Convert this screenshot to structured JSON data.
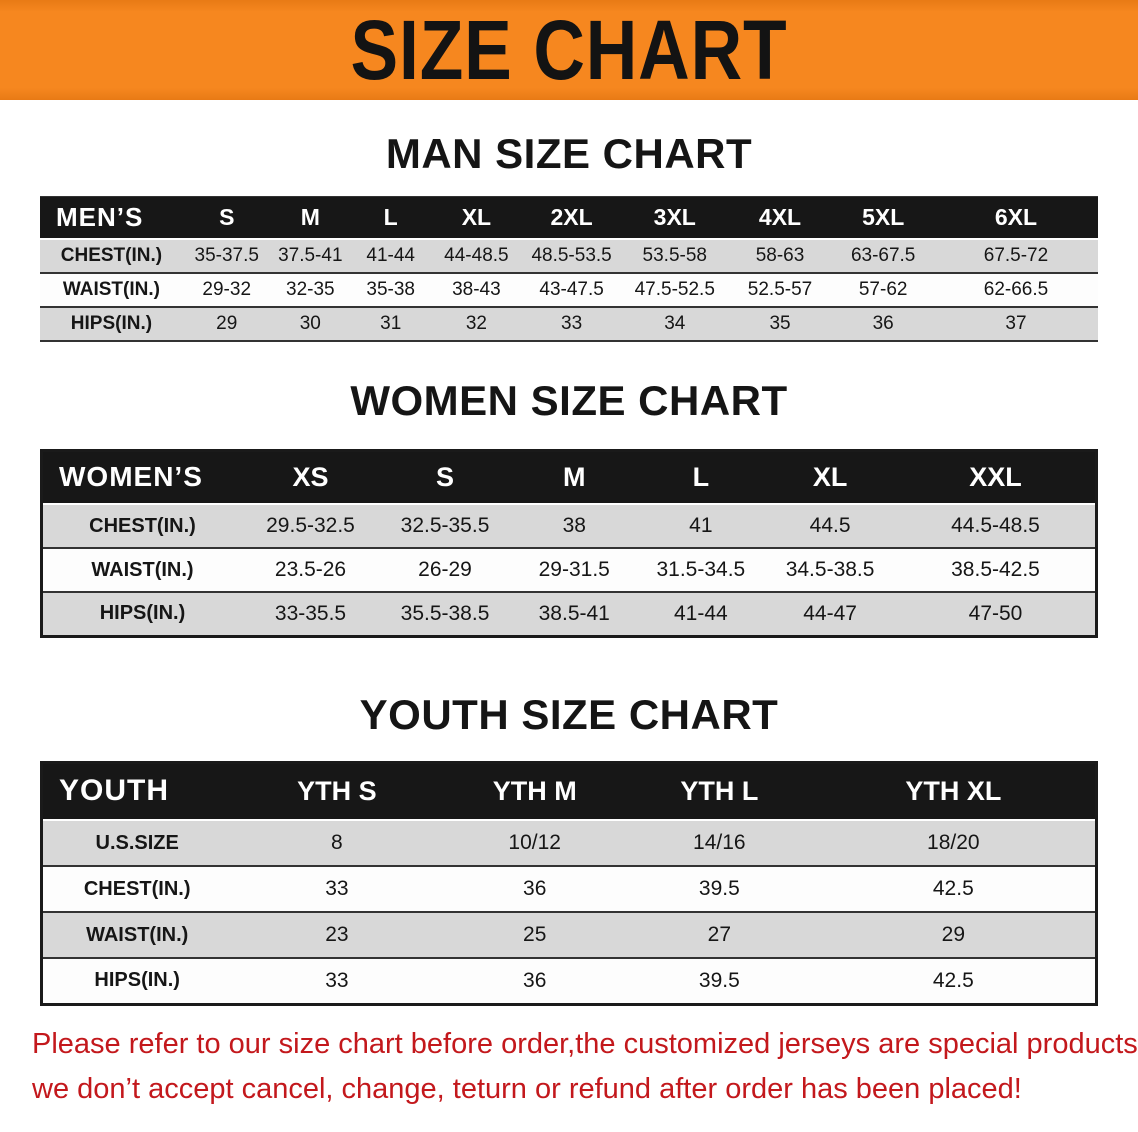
{
  "banner": {
    "title": "SIZE CHART"
  },
  "sections": [
    {
      "id": "men",
      "title": "MAN SIZE CHART",
      "table": {
        "header": [
          "MEN’S",
          "S",
          "M",
          "L",
          "XL",
          "2XL",
          "3XL",
          "4XL",
          "5XL",
          "6XL"
        ],
        "rows": [
          [
            "CHEST(IN.)",
            "35-37.5",
            "37.5-41",
            "41-44",
            "44-48.5",
            "48.5-53.5",
            "53.5-58",
            "58-63",
            "63-67.5",
            "67.5-72"
          ],
          [
            "WAIST(IN.)",
            "29-32",
            "32-35",
            "35-38",
            "38-43",
            "43-47.5",
            "47.5-52.5",
            "52.5-57",
            "57-62",
            "62-66.5"
          ],
          [
            "HIPS(IN.)",
            "29",
            "30",
            "31",
            "32",
            "33",
            "34",
            "35",
            "36",
            "37"
          ]
        ]
      }
    },
    {
      "id": "women",
      "title": "WOMEN SIZE CHART",
      "table": {
        "header": [
          "WOMEN’S",
          "XS",
          "S",
          "M",
          "L",
          "XL",
          "XXL"
        ],
        "rows": [
          [
            "CHEST(IN.)",
            "29.5-32.5",
            "32.5-35.5",
            "38",
            "41",
            "44.5",
            "44.5-48.5"
          ],
          [
            "WAIST(IN.)",
            "23.5-26",
            "26-29",
            "29-31.5",
            "31.5-34.5",
            "34.5-38.5",
            "38.5-42.5"
          ],
          [
            "HIPS(IN.)",
            "33-35.5",
            "35.5-38.5",
            "38.5-41",
            "41-44",
            "44-47",
            "47-50"
          ]
        ]
      }
    },
    {
      "id": "youth",
      "title": "YOUTH SIZE CHART",
      "table": {
        "header": [
          "YOUTH",
          "YTH S",
          "YTH M",
          "YTH L",
          "YTH XL"
        ],
        "rows": [
          [
            "U.S.SIZE",
            "8",
            "10/12",
            "14/16",
            "18/20"
          ],
          [
            "CHEST(IN.)",
            "33",
            "36",
            "39.5",
            "42.5"
          ],
          [
            "WAIST(IN.)",
            "23",
            "25",
            "27",
            "29"
          ],
          [
            "HIPS(IN.)",
            "33",
            "36",
            "39.5",
            "42.5"
          ]
        ]
      }
    }
  ],
  "notice": {
    "line1": "Please refer to our size chart before order,the customized jerseys are special products,",
    "line2": "we don’t accept cancel, change, teturn or refund after order has been placed!"
  },
  "colors": {
    "banner-orange": "#f6871f",
    "header-black": "#171717",
    "stripe-gray": "#d8d8d8",
    "row-white": "#fdfdfd",
    "notice-red": "#c3181c",
    "text-black": "#161616"
  }
}
